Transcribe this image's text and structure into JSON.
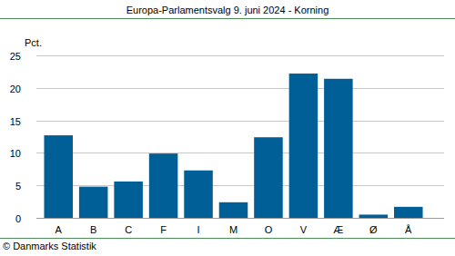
{
  "chart_data": {
    "type": "bar",
    "title": "Europa-Parlamentsvalg 9. juni 2024 - Korning",
    "y_label": "Pct.",
    "source": "© Danmarks Statistik",
    "categories": [
      "A",
      "B",
      "C",
      "F",
      "I",
      "M",
      "O",
      "V",
      "Æ",
      "Ø",
      "Å"
    ],
    "values": [
      12.7,
      4.8,
      5.6,
      9.9,
      7.3,
      2.4,
      12.4,
      22.2,
      21.4,
      0.5,
      1.7
    ],
    "color": "#005f96",
    "ylim": [
      0,
      25
    ],
    "yticks": [
      0,
      5,
      10,
      15,
      20,
      25
    ],
    "grid": true
  }
}
